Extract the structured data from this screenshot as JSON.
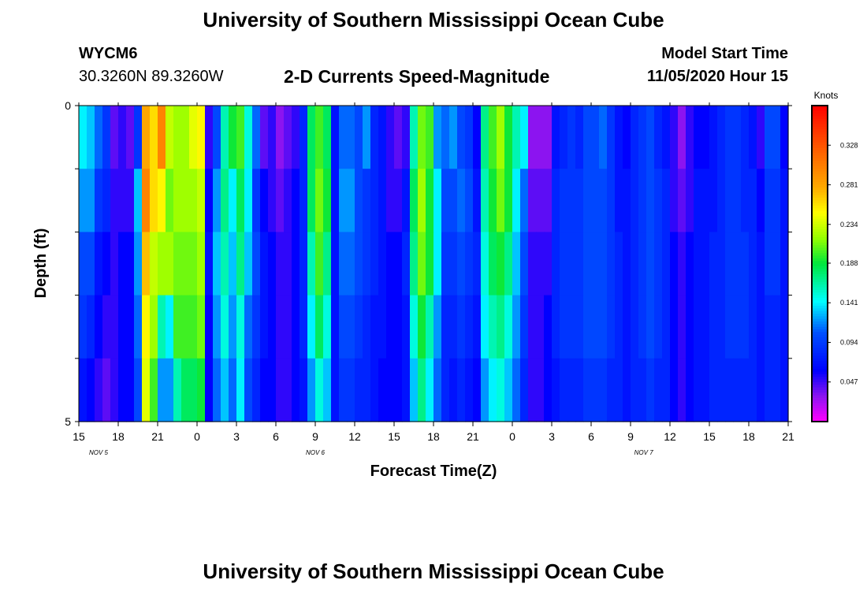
{
  "header": {
    "title": "University of Southern Mississippi Ocean Cube",
    "station_id": "WYCM6",
    "station_coords": "30.3260N 89.3260W",
    "plot_title": "2-D Currents Speed-Magnitude",
    "model_start_label": "Model Start Time",
    "model_start_value": "11/05/2020 Hour 15"
  },
  "footer": {
    "title": "University of Southern Mississippi Ocean Cube"
  },
  "chart_data": {
    "type": "heatmap",
    "title": "2-D Currents Speed-Magnitude",
    "xlabel": "Forecast Time(Z)",
    "ylabel": "Depth (ft)",
    "x_start_hour": 15,
    "hours_per_column": 1,
    "x_tick_labels": [
      "15",
      "18",
      "21",
      "0",
      "3",
      "6",
      "9",
      "12",
      "15",
      "18",
      "21",
      "0",
      "3",
      "6",
      "9",
      "12",
      "15",
      "18",
      "21"
    ],
    "date_labels": [
      {
        "label": "NOV 5",
        "hour_offset": 1.5
      },
      {
        "label": "NOV 6",
        "hour_offset": 18
      },
      {
        "label": "NOV 7",
        "hour_offset": 43
      }
    ],
    "y_tick_labels": [
      "0",
      "5"
    ],
    "ylim": [
      0,
      5
    ],
    "colorbar": {
      "unit": "Knots",
      "min": 0.0,
      "max": 0.375,
      "tick_values": [
        0.047,
        0.094,
        0.141,
        0.188,
        0.234,
        0.281,
        0.328
      ],
      "tick_labels": [
        "0.047",
        "0.094",
        "0.141",
        "0.188",
        "0.234",
        "0.281",
        "0.328"
      ]
    },
    "depth_rows": 5,
    "values": [
      [
        0.14,
        0.13,
        0.11,
        0.09,
        0.04,
        0.05,
        0.04,
        0.09,
        0.28,
        0.26,
        0.3,
        0.23,
        0.22,
        0.22,
        0.24,
        0.25,
        0.05,
        0.1,
        0.16,
        0.19,
        0.2,
        0.15,
        0.11,
        0.04,
        0.05,
        0.03,
        0.04,
        0.05,
        0.08,
        0.18,
        0.2,
        0.18,
        0.07,
        0.11,
        0.11,
        0.1,
        0.12,
        0.08,
        0.07,
        0.05,
        0.04,
        0.05,
        0.16,
        0.21,
        0.2,
        0.12,
        0.11,
        0.12,
        0.1,
        0.09,
        0.06,
        0.17,
        0.2,
        0.22,
        0.19,
        0.16,
        0.14,
        0.03,
        0.03,
        0.03,
        0.07,
        0.08,
        0.09,
        0.08,
        0.1,
        0.1,
        0.11,
        0.09,
        0.07,
        0.06,
        0.08,
        0.09,
        0.1,
        0.08,
        0.07,
        0.05,
        0.03,
        0.05,
        0.06,
        0.06,
        0.07,
        0.08,
        0.09,
        0.09,
        0.08,
        0.07,
        0.05,
        0.1,
        0.1,
        0.06
      ],
      [
        0.12,
        0.12,
        0.09,
        0.08,
        0.05,
        0.05,
        0.05,
        0.13,
        0.3,
        0.26,
        0.25,
        0.21,
        0.22,
        0.22,
        0.22,
        0.23,
        0.06,
        0.12,
        0.17,
        0.14,
        0.18,
        0.14,
        0.09,
        0.06,
        0.05,
        0.04,
        0.05,
        0.06,
        0.08,
        0.18,
        0.21,
        0.19,
        0.07,
        0.12,
        0.12,
        0.1,
        0.09,
        0.08,
        0.07,
        0.05,
        0.05,
        0.07,
        0.18,
        0.22,
        0.19,
        0.14,
        0.1,
        0.1,
        0.11,
        0.1,
        0.07,
        0.16,
        0.19,
        0.21,
        0.19,
        0.14,
        0.11,
        0.04,
        0.04,
        0.04,
        0.08,
        0.09,
        0.09,
        0.09,
        0.1,
        0.1,
        0.1,
        0.09,
        0.07,
        0.07,
        0.08,
        0.09,
        0.1,
        0.09,
        0.08,
        0.05,
        0.04,
        0.05,
        0.07,
        0.07,
        0.07,
        0.08,
        0.09,
        0.09,
        0.08,
        0.08,
        0.06,
        0.09,
        0.09,
        0.07
      ],
      [
        0.1,
        0.1,
        0.07,
        0.06,
        0.05,
        0.06,
        0.06,
        0.12,
        0.27,
        0.23,
        0.22,
        0.22,
        0.21,
        0.21,
        0.21,
        0.22,
        0.07,
        0.13,
        0.16,
        0.13,
        0.17,
        0.13,
        0.1,
        0.07,
        0.06,
        0.05,
        0.05,
        0.06,
        0.08,
        0.16,
        0.2,
        0.17,
        0.07,
        0.11,
        0.11,
        0.1,
        0.09,
        0.08,
        0.07,
        0.06,
        0.06,
        0.08,
        0.17,
        0.21,
        0.19,
        0.14,
        0.09,
        0.09,
        0.1,
        0.09,
        0.08,
        0.15,
        0.18,
        0.19,
        0.17,
        0.13,
        0.1,
        0.05,
        0.05,
        0.05,
        0.08,
        0.09,
        0.09,
        0.09,
        0.1,
        0.1,
        0.1,
        0.09,
        0.08,
        0.07,
        0.08,
        0.09,
        0.1,
        0.09,
        0.08,
        0.06,
        0.05,
        0.06,
        0.07,
        0.07,
        0.08,
        0.08,
        0.09,
        0.09,
        0.09,
        0.08,
        0.07,
        0.09,
        0.09,
        0.07
      ],
      [
        0.09,
        0.08,
        0.06,
        0.05,
        0.05,
        0.06,
        0.06,
        0.11,
        0.25,
        0.22,
        0.16,
        0.14,
        0.2,
        0.2,
        0.2,
        0.21,
        0.06,
        0.12,
        0.15,
        0.12,
        0.15,
        0.11,
        0.09,
        0.07,
        0.06,
        0.05,
        0.05,
        0.06,
        0.08,
        0.14,
        0.18,
        0.15,
        0.07,
        0.1,
        0.1,
        0.09,
        0.08,
        0.07,
        0.07,
        0.06,
        0.06,
        0.07,
        0.15,
        0.19,
        0.16,
        0.12,
        0.08,
        0.08,
        0.09,
        0.08,
        0.07,
        0.14,
        0.16,
        0.17,
        0.15,
        0.12,
        0.09,
        0.05,
        0.05,
        0.06,
        0.08,
        0.09,
        0.09,
        0.09,
        0.1,
        0.1,
        0.1,
        0.09,
        0.08,
        0.07,
        0.08,
        0.09,
        0.1,
        0.09,
        0.08,
        0.06,
        0.05,
        0.06,
        0.07,
        0.07,
        0.08,
        0.08,
        0.09,
        0.09,
        0.09,
        0.08,
        0.07,
        0.08,
        0.08,
        0.07
      ],
      [
        0.07,
        0.06,
        0.05,
        0.04,
        0.05,
        0.06,
        0.06,
        0.1,
        0.24,
        0.2,
        0.12,
        0.12,
        0.16,
        0.18,
        0.18,
        0.19,
        0.06,
        0.11,
        0.13,
        0.11,
        0.14,
        0.1,
        0.08,
        0.06,
        0.06,
        0.05,
        0.05,
        0.06,
        0.07,
        0.12,
        0.15,
        0.13,
        0.07,
        0.09,
        0.09,
        0.08,
        0.08,
        0.07,
        0.06,
        0.06,
        0.06,
        0.07,
        0.13,
        0.17,
        0.14,
        0.11,
        0.08,
        0.07,
        0.08,
        0.07,
        0.06,
        0.12,
        0.14,
        0.15,
        0.13,
        0.11,
        0.08,
        0.05,
        0.05,
        0.06,
        0.07,
        0.08,
        0.08,
        0.08,
        0.09,
        0.09,
        0.09,
        0.08,
        0.08,
        0.07,
        0.08,
        0.08,
        0.09,
        0.08,
        0.08,
        0.06,
        0.05,
        0.06,
        0.07,
        0.07,
        0.08,
        0.08,
        0.08,
        0.08,
        0.08,
        0.08,
        0.07,
        0.08,
        0.08,
        0.07
      ]
    ]
  }
}
